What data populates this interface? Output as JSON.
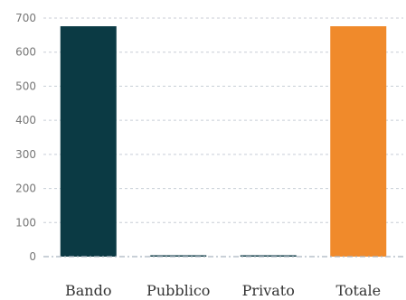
{
  "chart_data": {
    "type": "bar",
    "title": "",
    "xlabel": "",
    "ylabel": "",
    "categories": [
      "Bando",
      "Pubblico",
      "Privato",
      "Totale"
    ],
    "values": [
      676,
      0,
      0,
      676
    ],
    "colors": [
      "#0b3a44",
      "#0b3a44",
      "#0b3a44",
      "#f08a2b"
    ],
    "ylim": [
      0,
      700
    ],
    "yticks": [
      0,
      100,
      200,
      300,
      400,
      500,
      600,
      700
    ],
    "grid": true,
    "legend": "none"
  }
}
